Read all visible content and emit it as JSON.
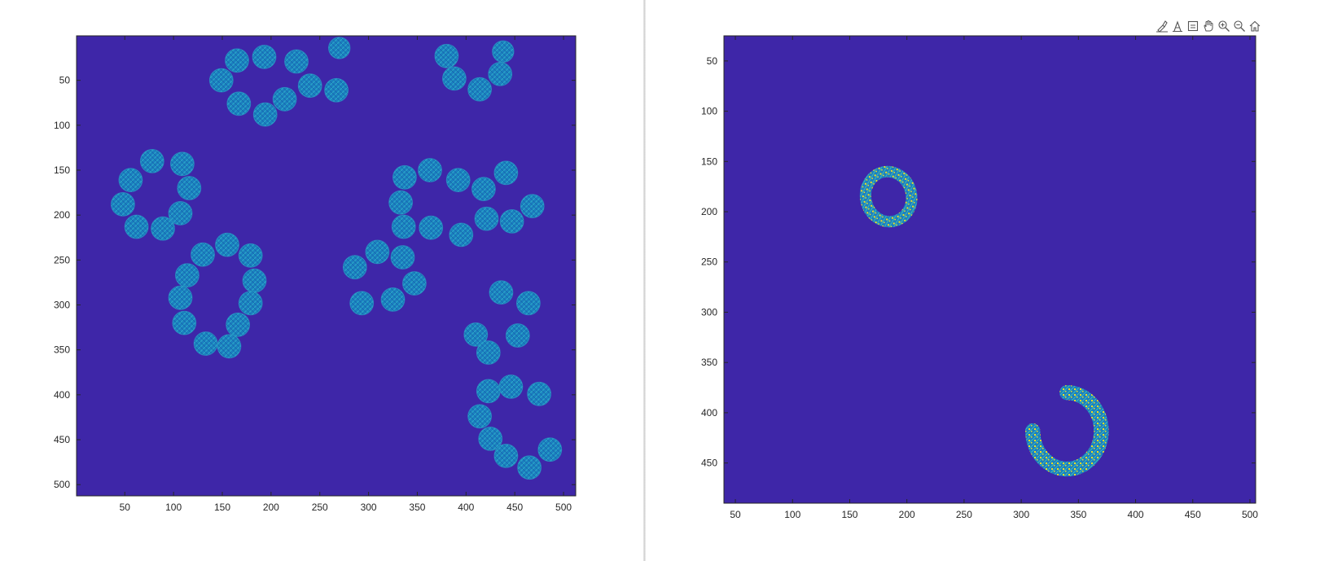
{
  "toolbar": {
    "icons": [
      "brush-icon",
      "data-tips-icon",
      "restore-view-icon",
      "pan-icon",
      "zoom-in-icon",
      "zoom-out-icon",
      "home-icon"
    ]
  },
  "colors": {
    "background": "#3e26a8",
    "blob": "#1b7fc0",
    "blob_light": "#2aa6c8",
    "highlight": "#f0e020",
    "axis": "#262626"
  },
  "chart_data": [
    {
      "type": "heatmap",
      "title": "",
      "xlabel": "",
      "ylabel": "",
      "xlim": [
        0.5,
        512.5
      ],
      "ylim": [
        512.5,
        0.5
      ],
      "y_reversed": true,
      "x_ticks": [
        50,
        100,
        150,
        200,
        250,
        300,
        350,
        400,
        450,
        500
      ],
      "y_ticks": [
        50,
        100,
        150,
        200,
        250,
        300,
        350,
        400,
        450,
        500
      ],
      "blobs": [
        {
          "x": 165,
          "y": 28,
          "r": 12
        },
        {
          "x": 193,
          "y": 24,
          "r": 12
        },
        {
          "x": 226,
          "y": 29,
          "r": 12
        },
        {
          "x": 270,
          "y": 14,
          "r": 11
        },
        {
          "x": 149,
          "y": 50,
          "r": 12
        },
        {
          "x": 240,
          "y": 56,
          "r": 12
        },
        {
          "x": 267,
          "y": 61,
          "r": 12
        },
        {
          "x": 214,
          "y": 71,
          "r": 12
        },
        {
          "x": 167,
          "y": 76,
          "r": 12
        },
        {
          "x": 194,
          "y": 88,
          "r": 12
        },
        {
          "x": 380,
          "y": 23,
          "r": 12
        },
        {
          "x": 438,
          "y": 18,
          "r": 11
        },
        {
          "x": 388,
          "y": 48,
          "r": 12
        },
        {
          "x": 435,
          "y": 43,
          "r": 12
        },
        {
          "x": 414,
          "y": 60,
          "r": 12
        },
        {
          "x": 78,
          "y": 140,
          "r": 12
        },
        {
          "x": 109,
          "y": 143,
          "r": 12
        },
        {
          "x": 56,
          "y": 161,
          "r": 12
        },
        {
          "x": 116,
          "y": 170,
          "r": 12
        },
        {
          "x": 48,
          "y": 188,
          "r": 12
        },
        {
          "x": 107,
          "y": 198,
          "r": 12
        },
        {
          "x": 62,
          "y": 213,
          "r": 12
        },
        {
          "x": 89,
          "y": 215,
          "r": 12
        },
        {
          "x": 155,
          "y": 233,
          "r": 12
        },
        {
          "x": 130,
          "y": 244,
          "r": 12
        },
        {
          "x": 179,
          "y": 245,
          "r": 12
        },
        {
          "x": 114,
          "y": 267,
          "r": 12
        },
        {
          "x": 183,
          "y": 273,
          "r": 12
        },
        {
          "x": 107,
          "y": 292,
          "r": 12
        },
        {
          "x": 179,
          "y": 298,
          "r": 12
        },
        {
          "x": 111,
          "y": 320,
          "r": 12
        },
        {
          "x": 166,
          "y": 322,
          "r": 12
        },
        {
          "x": 133,
          "y": 343,
          "r": 12
        },
        {
          "x": 157,
          "y": 346,
          "r": 12
        },
        {
          "x": 337,
          "y": 158,
          "r": 12
        },
        {
          "x": 363,
          "y": 150,
          "r": 12
        },
        {
          "x": 392,
          "y": 161,
          "r": 12
        },
        {
          "x": 441,
          "y": 153,
          "r": 12
        },
        {
          "x": 418,
          "y": 171,
          "r": 12
        },
        {
          "x": 333,
          "y": 186,
          "r": 12
        },
        {
          "x": 468,
          "y": 190,
          "r": 12
        },
        {
          "x": 336,
          "y": 213,
          "r": 12
        },
        {
          "x": 364,
          "y": 214,
          "r": 12
        },
        {
          "x": 395,
          "y": 222,
          "r": 12
        },
        {
          "x": 421,
          "y": 204,
          "r": 12
        },
        {
          "x": 447,
          "y": 207,
          "r": 12
        },
        {
          "x": 309,
          "y": 241,
          "r": 12
        },
        {
          "x": 335,
          "y": 247,
          "r": 12
        },
        {
          "x": 286,
          "y": 258,
          "r": 12
        },
        {
          "x": 347,
          "y": 276,
          "r": 12
        },
        {
          "x": 293,
          "y": 298,
          "r": 12
        },
        {
          "x": 325,
          "y": 294,
          "r": 12
        },
        {
          "x": 436,
          "y": 286,
          "r": 12
        },
        {
          "x": 464,
          "y": 298,
          "r": 12
        },
        {
          "x": 410,
          "y": 333,
          "r": 12
        },
        {
          "x": 453,
          "y": 334,
          "r": 12
        },
        {
          "x": 423,
          "y": 353,
          "r": 12
        },
        {
          "x": 423,
          "y": 396,
          "r": 12
        },
        {
          "x": 446,
          "y": 391,
          "r": 12
        },
        {
          "x": 475,
          "y": 399,
          "r": 12
        },
        {
          "x": 414,
          "y": 424,
          "r": 12
        },
        {
          "x": 425,
          "y": 449,
          "r": 12
        },
        {
          "x": 441,
          "y": 468,
          "r": 12
        },
        {
          "x": 465,
          "y": 481,
          "r": 12
        },
        {
          "x": 486,
          "y": 461,
          "r": 12
        }
      ]
    },
    {
      "type": "heatmap",
      "title": "",
      "xlabel": "",
      "ylabel": "",
      "xlim": [
        40,
        505
      ],
      "ylim": [
        490,
        25
      ],
      "y_reversed": true,
      "x_ticks": [
        50,
        100,
        150,
        200,
        250,
        300,
        350,
        400,
        450,
        500
      ],
      "y_ticks": [
        50,
        100,
        150,
        200,
        250,
        300,
        350,
        400,
        450
      ],
      "rings": [
        {
          "shape": "closed-ring",
          "cx": 184,
          "cy": 185,
          "rx": 20,
          "ry": 25,
          "thickness": 10
        },
        {
          "shape": "open-ring",
          "cx": 340,
          "cy": 418,
          "rx": 30,
          "ry": 38,
          "thickness": 13,
          "gap_start_deg": 180,
          "gap_end_deg": 270
        }
      ]
    }
  ]
}
